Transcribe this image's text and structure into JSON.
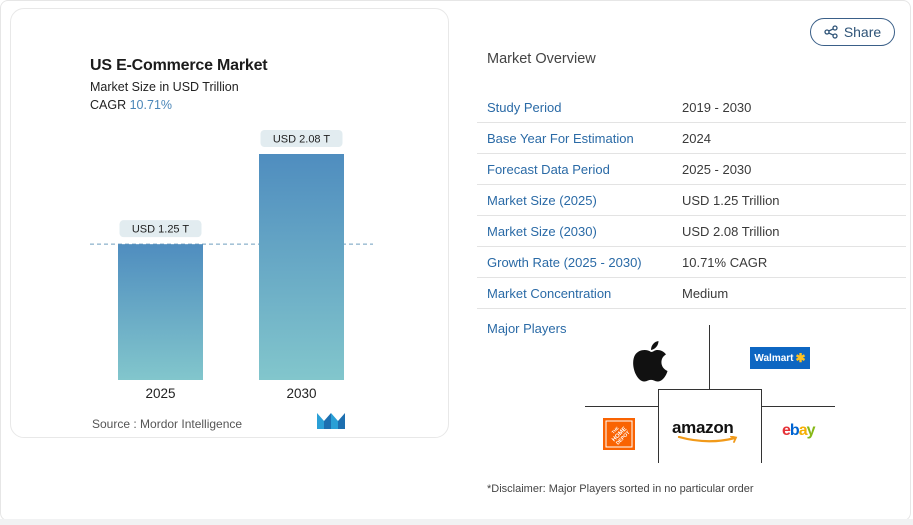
{
  "chart": {
    "title": "US E-Commerce Market",
    "subtitle": "Market Size in USD Trillion",
    "cagr_label": "CAGR",
    "cagr_value": "10.71%",
    "source": "Source :  Mordor Intelligence"
  },
  "chart_data": {
    "type": "bar",
    "title": "US E-Commerce Market",
    "subtitle": "Market Size in USD Trillion",
    "categories": [
      "2025",
      "2030"
    ],
    "values": [
      1.25,
      2.08
    ],
    "data_labels": [
      "USD 1.25 T",
      "USD 2.08 T"
    ],
    "ylim": [
      0,
      2.08
    ],
    "bar_colors": [
      "#4f8dbf",
      "#82c6cc"
    ],
    "reference_line": 1.25
  },
  "share": {
    "label": "Share"
  },
  "overview": {
    "heading": "Market Overview",
    "rows": [
      {
        "label": "Study Period",
        "value": "2019 - 2030"
      },
      {
        "label": "Base Year For Estimation",
        "value": "2024"
      },
      {
        "label": "Forecast Data Period",
        "value": "2025 - 2030"
      },
      {
        "label": "Market Size (2025)",
        "value": "USD 1.25 Trillion"
      },
      {
        "label": "Market Size (2030)",
        "value": "USD 2.08 Trillion"
      },
      {
        "label": "Growth Rate (2025 - 2030)",
        "value": "10.71% CAGR"
      },
      {
        "label": "Market Concentration",
        "value": "Medium"
      }
    ],
    "major_players_label": "Major Players",
    "players": {
      "walmart": "Walmart",
      "homedepot": "THE HOME DEPOT",
      "amazon": "amazon",
      "ebay": [
        "e",
        "b",
        "a",
        "y"
      ]
    },
    "disclaimer": "*Disclaimer: Major Players sorted in no particular order"
  },
  "colors": {
    "accent": "#2a6aa6",
    "bar_top": "#4f8dbf",
    "bar_bottom": "#82c6cc"
  }
}
